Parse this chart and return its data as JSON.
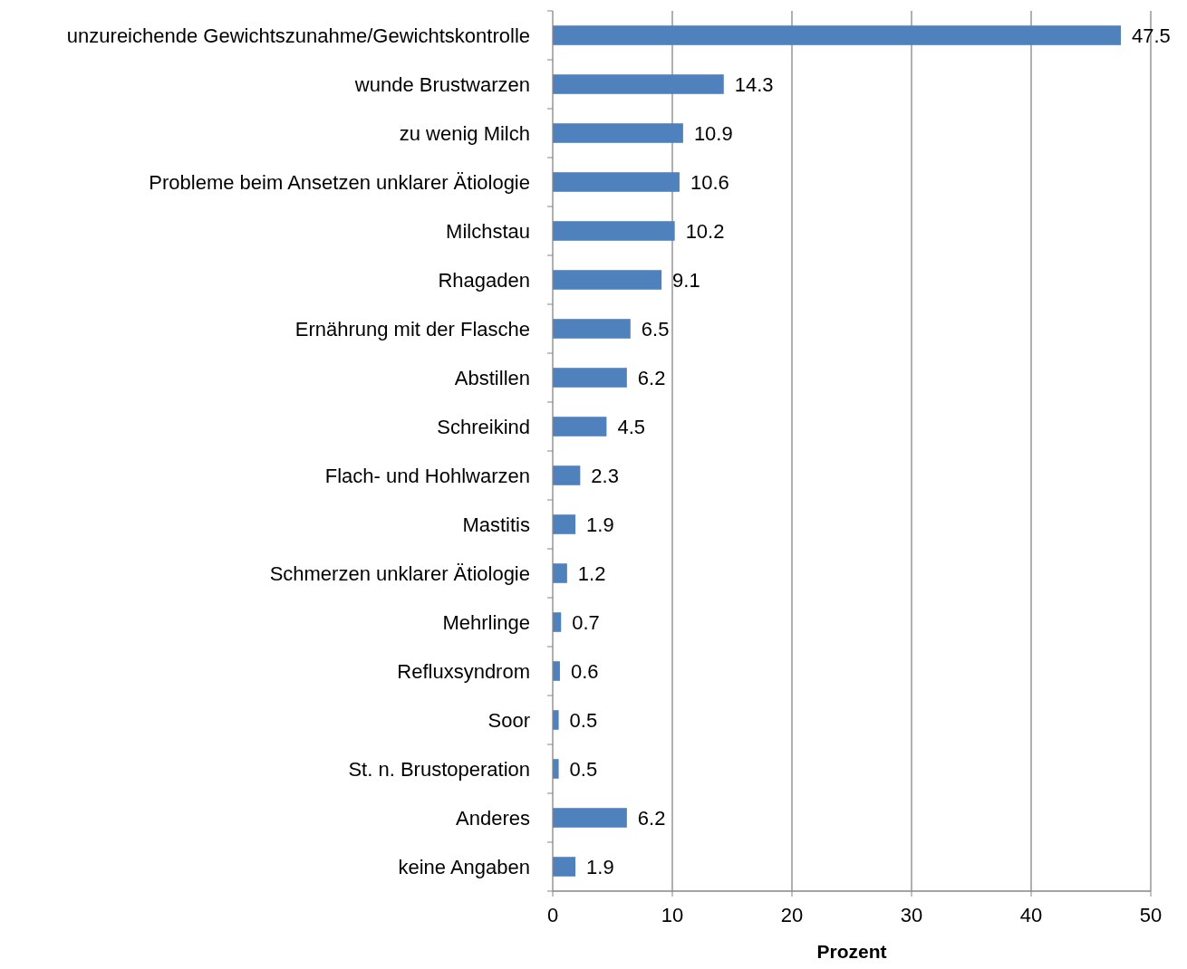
{
  "chart_data": {
    "type": "bar",
    "orientation": "horizontal",
    "xlabel": "Prozent",
    "categories": [
      "unzureichende Gewichtszunahme/Gewichtskontrolle",
      "wunde Brustwarzen",
      "zu wenig Milch",
      "Probleme beim Ansetzen unklarer Ätiologie",
      "Milchstau",
      "Rhagaden",
      "Ernährung mit der Flasche",
      "Abstillen",
      "Schreikind",
      "Flach- und Hohlwarzen",
      "Mastitis",
      "Schmerzen unklarer Ätiologie",
      "Mehrlinge",
      "Refluxsyndrom",
      "Soor",
      "St. n. Brustoperation",
      "Anderes",
      "keine Angaben"
    ],
    "values": [
      47.5,
      14.3,
      10.9,
      10.6,
      10.2,
      9.1,
      6.5,
      6.2,
      4.5,
      2.3,
      1.9,
      1.2,
      0.7,
      0.6,
      0.5,
      0.5,
      6.2,
      1.9
    ],
    "color": "#4f81bd",
    "xlim": [
      0,
      50
    ],
    "xticks": [
      0,
      10,
      20,
      30,
      40,
      50
    ],
    "grid": "x",
    "data_labels": true
  }
}
